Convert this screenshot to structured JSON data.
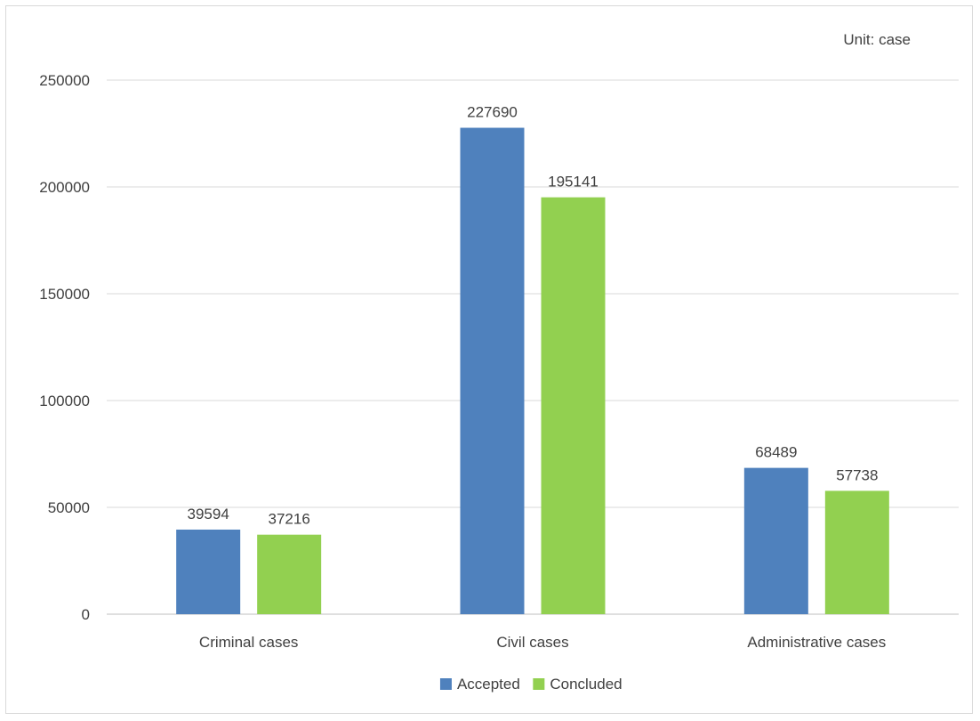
{
  "chart_data": {
    "type": "bar",
    "unit_note": "Unit: case",
    "categories": [
      "Criminal cases",
      "Civil cases",
      "Administrative cases"
    ],
    "series": [
      {
        "name": "Accepted",
        "color": "#4f81bd",
        "values": [
          39594,
          227690,
          68489
        ]
      },
      {
        "name": "Concluded",
        "color": "#92d050",
        "values": [
          37216,
          195141,
          57738
        ]
      }
    ],
    "ylim": [
      0,
      250000
    ],
    "yticks": [
      0,
      50000,
      100000,
      150000,
      200000,
      250000
    ],
    "grid": true,
    "legend_position": "bottom"
  }
}
